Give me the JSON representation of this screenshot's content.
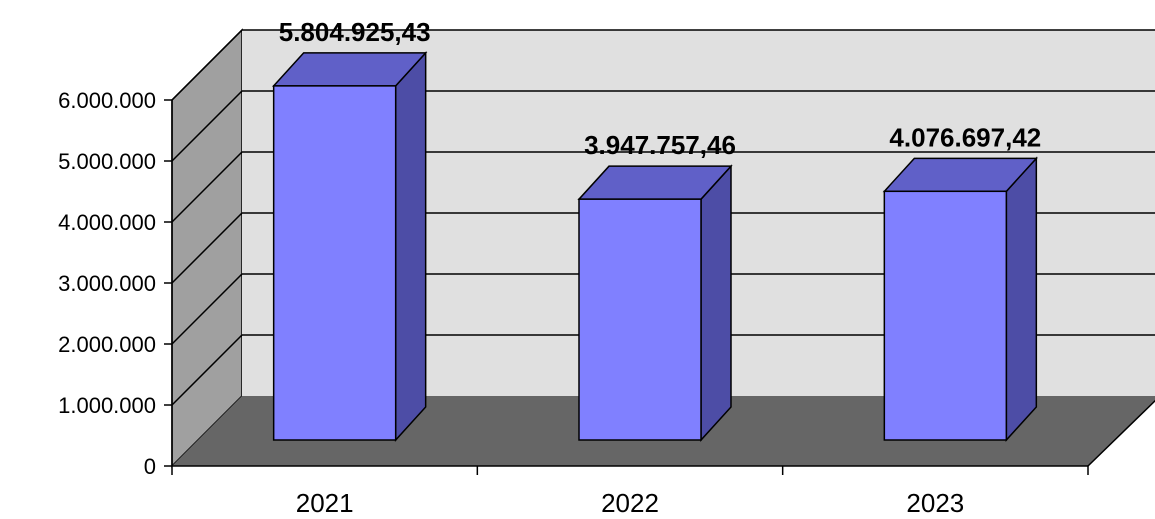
{
  "chart_data": {
    "type": "bar",
    "style": "3d-column",
    "categories": [
      "2021",
      "2022",
      "2023"
    ],
    "values": [
      5804925.43,
      3947757.46,
      4076697.42
    ],
    "data_labels": [
      "5.804.925,43",
      "3.947.757,46",
      "4.076.697,42"
    ],
    "yticks": [
      0,
      1000000,
      2000000,
      3000000,
      4000000,
      5000000,
      6000000
    ],
    "ytick_labels": [
      "0",
      "1.000.000",
      "2.000.000",
      "3.000.000",
      "4.000.000",
      "5.000.000",
      "6.000.000"
    ],
    "ylim": [
      0,
      6000000
    ],
    "grid": true,
    "legend": "none",
    "colors": {
      "bar_front": "#8080ff",
      "bar_top": "#6060c8",
      "bar_side": "#4d4da6",
      "back_wall": "#e0e0e0",
      "side_wall": "#a0a0a0",
      "floor": "#666666",
      "grid": "#000000"
    }
  }
}
